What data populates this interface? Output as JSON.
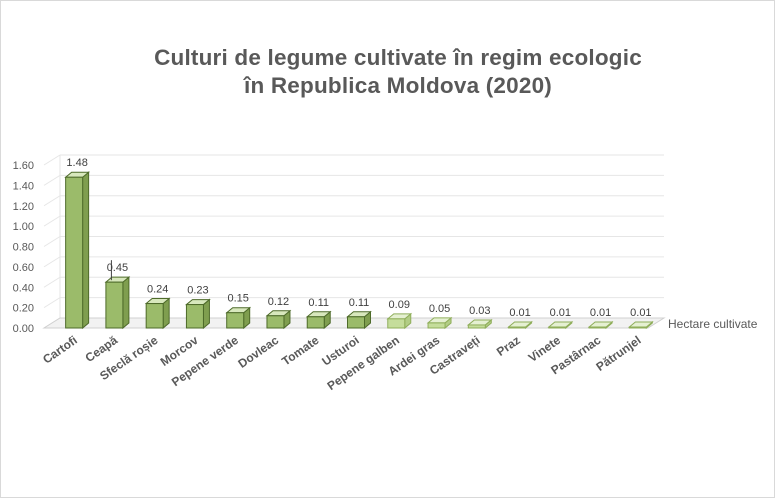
{
  "chart_data": {
    "type": "bar",
    "title_line1": "Culturi de legume cultivate în regim ecologic",
    "title_line2": "în Republica Moldova (2020)",
    "categories": [
      "Cartofi",
      "Ceapă",
      "Sfeclă roșie",
      "Morcov",
      "Pepene verde",
      "Dovleac",
      "Tomate",
      "Usturoi",
      "Pepene galben",
      "Ardei gras",
      "Castraveți",
      "Praz",
      "Vinete",
      "Pastârnac",
      "Pătrunjel"
    ],
    "series": [
      {
        "name": "Hectare cultivate",
        "values": [
          1.48,
          0.45,
          0.24,
          0.23,
          0.15,
          0.12,
          0.11,
          0.11,
          0.09,
          0.05,
          0.03,
          0.01,
          0.01,
          0.01,
          0.01
        ]
      }
    ],
    "data_labels": [
      "1.48",
      "0.45",
      "0.24",
      "0.23",
      "0.15",
      "0.12",
      "0.11",
      "0.11",
      "0.09",
      "0.05",
      "0.03",
      "0.01",
      "0.01",
      "0.01",
      "0.01"
    ],
    "y_ticks": [
      "0.00",
      "0.20",
      "0.40",
      "0.60",
      "0.80",
      "1.00",
      "1.20",
      "1.40",
      "1.60"
    ],
    "ylim": [
      0,
      1.6
    ],
    "grid": true,
    "legend_position": "right",
    "colors": {
      "front_dark": "#9bbb6a",
      "front_light": "#c5dd9b",
      "top_dark": "#d8e8bd",
      "side_dark": "#7f9e4f",
      "edge_dark": "#4e6b2a",
      "edge_light": "#8fae5a",
      "grid": "#e6e6e6",
      "axis": "#d0d0d0"
    }
  }
}
